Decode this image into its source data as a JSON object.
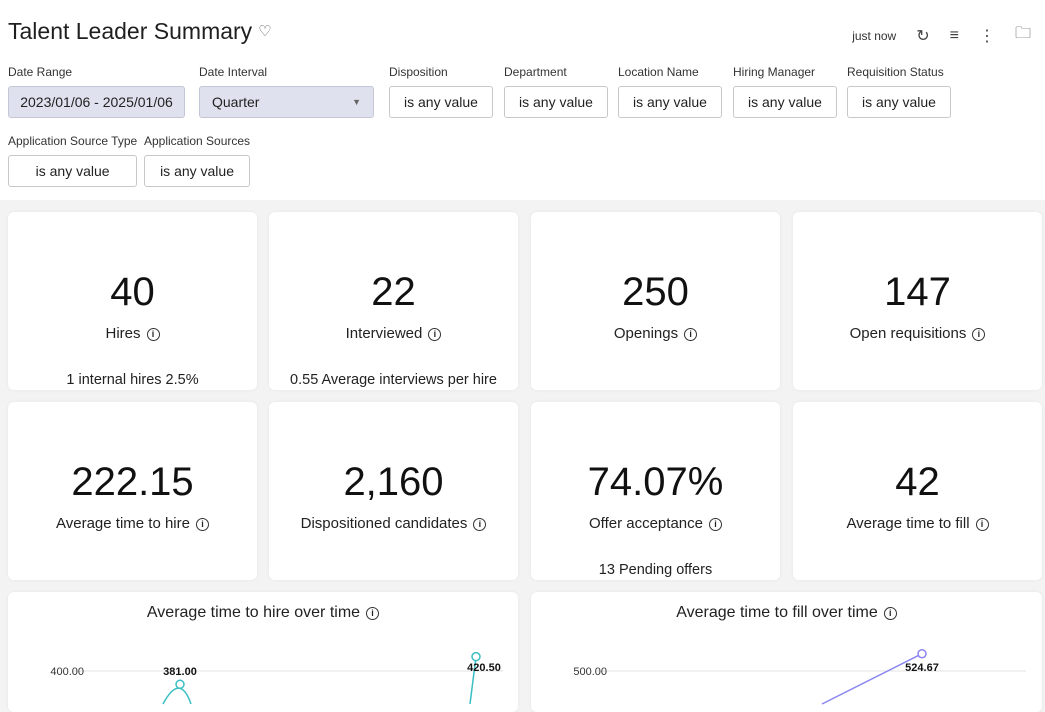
{
  "header": {
    "title": "Talent Leader Summary",
    "refreshed": "just now"
  },
  "filters": [
    {
      "label": "Date Range",
      "value": "2023/01/06 - 2025/01/06"
    },
    {
      "label": "Date Interval",
      "value": "Quarter"
    },
    {
      "label": "Disposition",
      "value": "is any value"
    },
    {
      "label": "Department",
      "value": "is any value"
    },
    {
      "label": "Location Name",
      "value": "is any value"
    },
    {
      "label": "Hiring Manager",
      "value": "is any value"
    },
    {
      "label": "Requisition Status",
      "value": "is any value"
    },
    {
      "label": "Application Source Type",
      "value": "is any value"
    },
    {
      "label": "Application Sources",
      "value": "is any value"
    }
  ],
  "tiles": [
    {
      "value": "40",
      "label": "Hires",
      "sub": "1 internal hires 2.5%"
    },
    {
      "value": "22",
      "label": "Interviewed",
      "sub": "0.55 Average interviews per hire"
    },
    {
      "value": "250",
      "label": "Openings",
      "sub": ""
    },
    {
      "value": "147",
      "label": "Open requisitions",
      "sub": ""
    },
    {
      "value": "222.15",
      "label": "Average time to hire",
      "sub": ""
    },
    {
      "value": "2,160",
      "label": "Dispositioned candidates",
      "sub": ""
    },
    {
      "value": "74.07%",
      "label": "Offer acceptance",
      "sub": "13 Pending offers"
    },
    {
      "value": "42",
      "label": "Average time to fill",
      "sub": ""
    }
  ],
  "chart_data": [
    {
      "type": "line",
      "title": "Average time to hire over time",
      "y_ticks": [
        "400.00"
      ],
      "data_labels": [
        "381.00",
        "420.50"
      ],
      "values": [
        381.0,
        420.5
      ],
      "color": "#3bbfc4"
    },
    {
      "type": "line",
      "title": "Average time to fill over time",
      "y_ticks": [
        "500.00"
      ],
      "data_labels": [
        "524.67"
      ],
      "values": [
        524.67
      ],
      "color": "#8a85f0"
    }
  ]
}
